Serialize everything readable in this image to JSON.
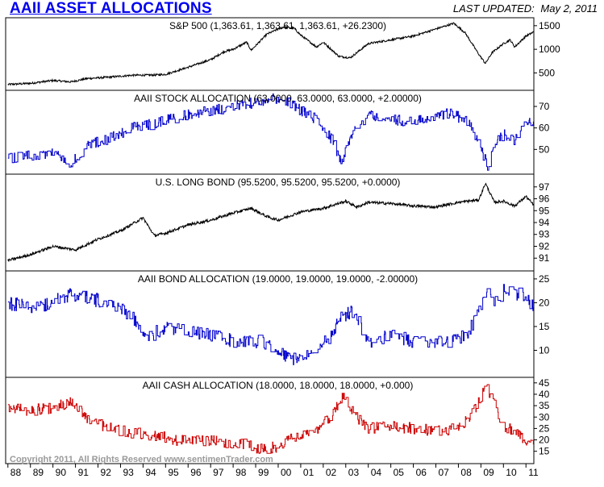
{
  "header": {
    "title": "AAII ASSET ALLOCATIONS",
    "last_updated_label": "LAST UPDATED:",
    "last_updated_date": "May 2, 2011"
  },
  "footer": {
    "copyright": "Copyright 2011, All Rights Reserved  www.sentimenTrader.com"
  },
  "colors": {
    "sp500": "#000000",
    "stock": "#0000cc",
    "bond_index": "#000000",
    "bond_alloc": "#0000cc",
    "cash": "#cc0000"
  },
  "chart_data": {
    "type": "line",
    "x_axis": {
      "range": [
        1987.9,
        2011.35
      ],
      "ticks": [
        {
          "label": "88",
          "x": 1988
        },
        {
          "label": "89",
          "x": 1989
        },
        {
          "label": "90",
          "x": 1990
        },
        {
          "label": "91",
          "x": 1991
        },
        {
          "label": "92",
          "x": 1992
        },
        {
          "label": "93",
          "x": 1993
        },
        {
          "label": "94",
          "x": 1994
        },
        {
          "label": "95",
          "x": 1995
        },
        {
          "label": "96",
          "x": 1996
        },
        {
          "label": "97",
          "x": 1997
        },
        {
          "label": "98",
          "x": 1998
        },
        {
          "label": "99",
          "x": 1999
        },
        {
          "label": "00",
          "x": 2000
        },
        {
          "label": "01",
          "x": 2001
        },
        {
          "label": "02",
          "x": 2002
        },
        {
          "label": "03",
          "x": 2003
        },
        {
          "label": "04",
          "x": 2004
        },
        {
          "label": "05",
          "x": 2005
        },
        {
          "label": "06",
          "x": 2006
        },
        {
          "label": "07",
          "x": 2007
        },
        {
          "label": "08",
          "x": 2008
        },
        {
          "label": "09",
          "x": 2009
        },
        {
          "label": "10",
          "x": 2010
        },
        {
          "label": "11",
          "x": 2011
        }
      ]
    },
    "panels": [
      {
        "id": "sp500",
        "title": "S&P 500 (1,363.61, 1,363.61, 1,363.61, +26.2300)",
        "yticks": [
          500,
          1000,
          1500
        ],
        "ylim": [
          200,
          1600
        ],
        "x": [
          1988.0,
          1989.0,
          1990.0,
          1990.8,
          1991.5,
          1992.5,
          1993.5,
          1994.5,
          1995.0,
          1996.0,
          1997.0,
          1997.6,
          1998.0,
          1998.6,
          1998.8,
          1999.5,
          2000.2,
          2000.7,
          2001.0,
          2001.7,
          2002.0,
          2002.7,
          2003.2,
          2004.0,
          2005.0,
          2006.0,
          2007.0,
          2007.8,
          2008.3,
          2008.9,
          2009.2,
          2009.5,
          2010.0,
          2010.3,
          2010.5,
          2011.0,
          2011.33
        ],
        "y": [
          255,
          280,
          340,
          310,
          380,
          410,
          450,
          455,
          470,
          620,
          780,
          950,
          1000,
          1150,
          980,
          1320,
          1470,
          1450,
          1300,
          1050,
          1150,
          850,
          820,
          1120,
          1200,
          1280,
          1430,
          1550,
          1350,
          900,
          700,
          930,
          1120,
          1200,
          1050,
          1280,
          1363
        ]
      },
      {
        "id": "stock",
        "title": "AAII STOCK ALLOCATION (63.0000, 63.0000, 63.0000, +2.00000)",
        "yticks": [
          50,
          60,
          70
        ],
        "ylim": [
          40,
          76
        ],
        "x": [
          1988.0,
          1989.0,
          1990.0,
          1990.8,
          1991.5,
          1992.5,
          1993.5,
          1994.5,
          1995.0,
          1996.0,
          1997.0,
          1998.0,
          1999.0,
          2000.0,
          2000.5,
          2001.0,
          2001.7,
          2002.3,
          2002.8,
          2003.3,
          2004.0,
          2005.0,
          2006.0,
          2007.0,
          2007.7,
          2008.5,
          2008.9,
          2009.3,
          2009.7,
          2010.0,
          2010.5,
          2011.0,
          2011.33
        ],
        "y": [
          46,
          47,
          48,
          43,
          52,
          55,
          60,
          62,
          64,
          66,
          68,
          70,
          72,
          74,
          72,
          68,
          64,
          56,
          44,
          58,
          66,
          64,
          63,
          66,
          67,
          62,
          52,
          42,
          54,
          57,
          54,
          62,
          63
        ]
      },
      {
        "id": "bond_index",
        "title": "U.S. LONG BOND (95.5200, 95.5200, 95.5200, +0.0000)",
        "yticks": [
          91,
          92,
          93,
          94,
          95,
          96,
          97
        ],
        "ylim": [
          90.2,
          97.8
        ],
        "x": [
          1988.0,
          1989.0,
          1990.0,
          1991.0,
          1992.0,
          1993.0,
          1994.0,
          1994.5,
          1995.0,
          1996.0,
          1997.0,
          1998.0,
          1998.8,
          1999.5,
          2000.0,
          2001.0,
          2002.0,
          2003.0,
          2003.5,
          2004.0,
          2005.0,
          2006.0,
          2007.0,
          2008.0,
          2008.9,
          2009.2,
          2009.6,
          2010.0,
          2010.5,
          2011.0,
          2011.33
        ],
        "y": [
          90.8,
          91.3,
          92.0,
          91.7,
          92.6,
          93.3,
          94.4,
          92.9,
          93.1,
          93.8,
          94.2,
          94.8,
          95.2,
          94.5,
          94.2,
          94.9,
          95.2,
          95.8,
          95.3,
          95.7,
          95.6,
          95.4,
          95.3,
          95.7,
          95.9,
          97.3,
          95.7,
          95.8,
          95.4,
          96.2,
          95.5
        ]
      },
      {
        "id": "bond_alloc",
        "title": "AAII BOND ALLOCATION (19.0000, 19.0000, 19.0000, -2.00000)",
        "yticks": [
          10,
          15,
          20,
          25
        ],
        "ylim": [
          5,
          26
        ],
        "x": [
          1988.0,
          1989.0,
          1990.0,
          1990.8,
          1991.5,
          1992.5,
          1993.5,
          1994.3,
          1995.0,
          1996.0,
          1997.0,
          1998.0,
          1999.0,
          1999.8,
          2000.5,
          2001.0,
          2001.5,
          2002.3,
          2002.8,
          2003.3,
          2004.0,
          2005.0,
          2006.0,
          2007.0,
          2007.7,
          2008.3,
          2008.8,
          2009.3,
          2009.7,
          2010.0,
          2010.6,
          2011.0,
          2011.33
        ],
        "y": [
          20,
          19,
          20,
          22,
          21,
          20,
          17,
          13,
          15,
          14,
          13,
          12,
          12,
          11,
          8,
          9,
          10,
          13,
          17,
          18,
          12,
          13,
          12,
          12,
          12,
          13,
          17,
          22,
          20,
          23,
          22,
          21,
          19
        ]
      },
      {
        "id": "cash",
        "title": "AAII CASH ALLOCATION (18.0000, 18.0000, 18.0000, +0.000)",
        "yticks": [
          15,
          20,
          25,
          30,
          35,
          40,
          45
        ],
        "ylim": [
          11,
          46
        ],
        "x": [
          1988.0,
          1989.0,
          1990.0,
          1990.8,
          1991.5,
          1992.5,
          1993.5,
          1994.5,
          1995.5,
          1996.5,
          1997.5,
          1998.5,
          1999.3,
          2000.0,
          2000.5,
          2001.5,
          2002.3,
          2002.9,
          2003.3,
          2004.0,
          2005.0,
          2006.0,
          2007.0,
          2008.0,
          2008.8,
          2009.2,
          2009.6,
          2010.0,
          2010.5,
          2011.0,
          2011.33
        ],
        "y": [
          34,
          33,
          34,
          37,
          29,
          25,
          23,
          22,
          20,
          20,
          19,
          18,
          16,
          17,
          20,
          23,
          30,
          39,
          32,
          25,
          26,
          25,
          24,
          25,
          34,
          44,
          35,
          26,
          24,
          20,
          18
        ]
      }
    ]
  }
}
